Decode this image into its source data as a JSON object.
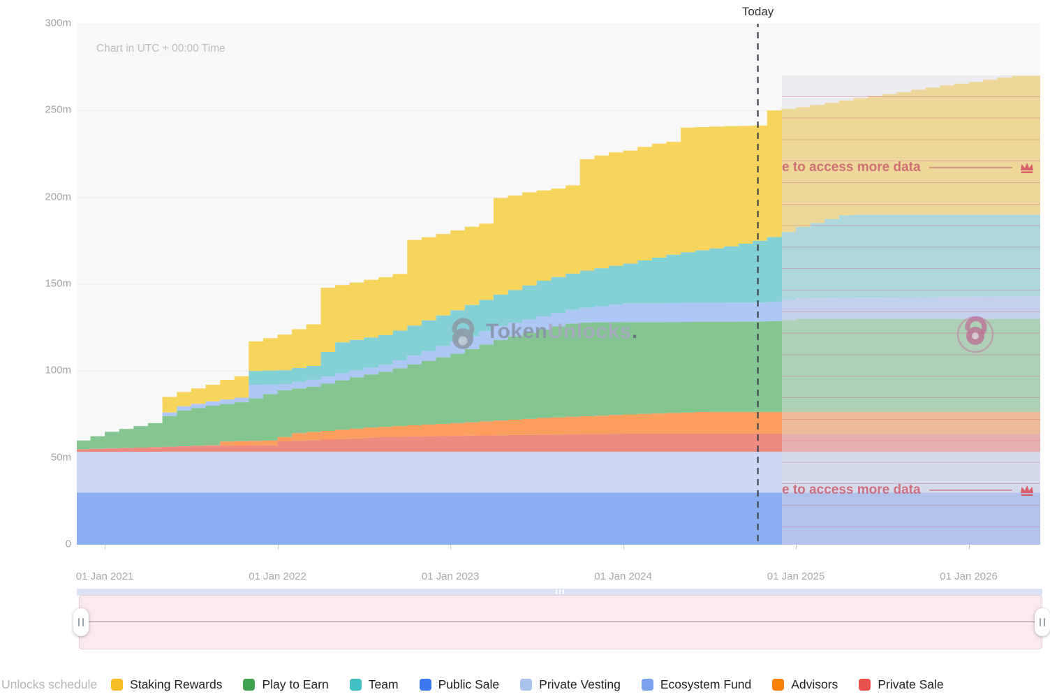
{
  "header": {
    "timezone_note": "Chart in UTC + 00:00 Time"
  },
  "watermark": {
    "brand_bold": "Token",
    "brand_light": "Unlocks",
    "brand_dot": "."
  },
  "overlay": {
    "teaser_text": "e to access more data",
    "start_year": 2024.925,
    "accent_color": "#cb5c6c"
  },
  "legend": {
    "title": "Unlocks schedule",
    "items": [
      {
        "label": "Staking Rewards",
        "color": "#f5be25"
      },
      {
        "label": "Play to Earn",
        "color": "#3fa24f"
      },
      {
        "label": "Team",
        "color": "#41bfc1"
      },
      {
        "label": "Public Sale",
        "color": "#3d78ee"
      },
      {
        "label": "Private Vesting",
        "color": "#a9c3ee"
      },
      {
        "label": "Ecosystem Fund",
        "color": "#7aa1f0"
      },
      {
        "label": "Advisors",
        "color": "#fb8106"
      },
      {
        "label": "Private Sale",
        "color": "#e8504c"
      }
    ]
  },
  "chart_data": {
    "type": "area",
    "stacked": true,
    "units": "millions of tokens",
    "values_are": "cumulative_top_anchors [year, cumulative_millions], stepped monthly",
    "x_axis": {
      "min_year": 2020.838,
      "max_year": 2026.414,
      "ticks": [
        {
          "label": "01 Jan 2021",
          "year": 2021
        },
        {
          "label": "01 Jan 2022",
          "year": 2022
        },
        {
          "label": "01 Jan 2023",
          "year": 2023
        },
        {
          "label": "01 Jan 2024",
          "year": 2024
        },
        {
          "label": "01 Jan 2025",
          "year": 2025
        },
        {
          "label": "01 Jan 2026",
          "year": 2026
        }
      ]
    },
    "y_axis": {
      "min": 0,
      "max": 300,
      "tick_step": 50,
      "tick_labels": [
        "0",
        "50m",
        "100m",
        "150m",
        "200m",
        "250m",
        "300m"
      ],
      "grid": true
    },
    "today": {
      "label": "Today",
      "year": 2024.78,
      "line_color": "#40454d"
    },
    "series": [
      {
        "name": "Public Sale",
        "color": "#8aaef0",
        "anchors": [
          [
            2020.84,
            30
          ],
          [
            2026.41,
            30
          ]
        ]
      },
      {
        "name": "Private Vesting",
        "color": "#cdd9f3",
        "anchors": [
          [
            2020.84,
            53.5
          ],
          [
            2026.41,
            53.5
          ]
        ]
      },
      {
        "name": "Private Sale",
        "color": "#ee8b81",
        "anchors": [
          [
            2020.84,
            55
          ],
          [
            2021.2,
            56
          ],
          [
            2021.5,
            57
          ],
          [
            2021.95,
            57.2
          ],
          [
            2022.0,
            59.5
          ],
          [
            2022.6,
            62
          ],
          [
            2023.2,
            63
          ],
          [
            2024.0,
            64
          ],
          [
            2026.41,
            64
          ]
        ]
      },
      {
        "name": "Advisors",
        "color": "#fb9e5e",
        "anchors": [
          [
            2020.84,
            55
          ],
          [
            2021.2,
            56
          ],
          [
            2021.5,
            57
          ],
          [
            2021.58,
            57.2
          ],
          [
            2021.67,
            59.5
          ],
          [
            2021.95,
            60
          ],
          [
            2022.05,
            64
          ],
          [
            2022.5,
            67.5
          ],
          [
            2023.0,
            70
          ],
          [
            2023.5,
            73
          ],
          [
            2024.0,
            75
          ],
          [
            2024.45,
            76.5
          ],
          [
            2026.41,
            76.5
          ]
        ]
      },
      {
        "name": "Play to Earn",
        "color": "#85c591",
        "anchors": [
          [
            2020.84,
            60
          ],
          [
            2021.0,
            65
          ],
          [
            2021.25,
            70
          ],
          [
            2021.33,
            74
          ],
          [
            2021.4,
            77
          ],
          [
            2021.58,
            80
          ],
          [
            2021.75,
            82
          ],
          [
            2022.0,
            89
          ],
          [
            2022.17,
            91
          ],
          [
            2022.3,
            94
          ],
          [
            2022.6,
            100
          ],
          [
            2023.0,
            110
          ],
          [
            2023.25,
            118
          ],
          [
            2023.5,
            124
          ],
          [
            2023.7,
            128
          ],
          [
            2024.8,
            128.5
          ],
          [
            2025.0,
            130
          ],
          [
            2026.41,
            130
          ]
        ]
      },
      {
        "name": "Ecosystem Fund",
        "color": "#aec7f5",
        "anchors": [
          [
            2020.84,
            60
          ],
          [
            2021.0,
            65
          ],
          [
            2021.25,
            70
          ],
          [
            2021.33,
            76
          ],
          [
            2021.4,
            79.5
          ],
          [
            2021.58,
            82.5
          ],
          [
            2021.75,
            84.7
          ],
          [
            2021.79,
            92
          ],
          [
            2022.0,
            92.5
          ],
          [
            2022.17,
            95
          ],
          [
            2022.3,
            98
          ],
          [
            2022.6,
            104
          ],
          [
            2023.0,
            117
          ],
          [
            2023.25,
            126
          ],
          [
            2023.5,
            131.5
          ],
          [
            2023.7,
            136
          ],
          [
            2024.0,
            139
          ],
          [
            2024.8,
            139.5
          ],
          [
            2025.0,
            142
          ],
          [
            2026.41,
            143
          ]
        ]
      },
      {
        "name": "Team",
        "color": "#84d1d5",
        "anchors": [
          [
            2020.84,
            60
          ],
          [
            2021.0,
            65
          ],
          [
            2021.25,
            70
          ],
          [
            2021.33,
            76
          ],
          [
            2021.4,
            79.5
          ],
          [
            2021.58,
            82.5
          ],
          [
            2021.75,
            84.7
          ],
          [
            2021.79,
            100
          ],
          [
            2022.0,
            100.5
          ],
          [
            2022.17,
            103
          ],
          [
            2022.3,
            116
          ],
          [
            2022.6,
            121
          ],
          [
            2023.0,
            135
          ],
          [
            2023.25,
            144
          ],
          [
            2023.5,
            152
          ],
          [
            2023.7,
            157
          ],
          [
            2024.0,
            162
          ],
          [
            2024.3,
            168
          ],
          [
            2024.6,
            172
          ],
          [
            2024.8,
            176
          ],
          [
            2025.0,
            183
          ],
          [
            2025.26,
            190
          ],
          [
            2026.41,
            190
          ]
        ]
      },
      {
        "name": "Staking Rewards",
        "color": "#f7d45b",
        "anchors": [
          [
            2020.84,
            60
          ],
          [
            2021.0,
            65
          ],
          [
            2021.25,
            70
          ],
          [
            2021.33,
            85
          ],
          [
            2021.42,
            88
          ],
          [
            2021.5,
            90
          ],
          [
            2021.58,
            92
          ],
          [
            2021.67,
            95
          ],
          [
            2021.75,
            97
          ],
          [
            2021.79,
            115
          ],
          [
            2021.83,
            117
          ],
          [
            2021.92,
            119
          ],
          [
            2022.0,
            121
          ],
          [
            2022.08,
            124
          ],
          [
            2022.17,
            127
          ],
          [
            2022.25,
            148
          ],
          [
            2022.42,
            151
          ],
          [
            2022.58,
            154
          ],
          [
            2022.67,
            156
          ],
          [
            2022.72,
            175
          ],
          [
            2022.83,
            177
          ],
          [
            2022.92,
            179
          ],
          [
            2023.0,
            181
          ],
          [
            2023.08,
            183
          ],
          [
            2023.17,
            185
          ],
          [
            2023.21,
            199
          ],
          [
            2023.33,
            201
          ],
          [
            2023.42,
            203
          ],
          [
            2023.58,
            205
          ],
          [
            2023.67,
            207
          ],
          [
            2023.75,
            222
          ],
          [
            2023.83,
            224
          ],
          [
            2023.92,
            226
          ],
          [
            2024.0,
            227
          ],
          [
            2024.08,
            229
          ],
          [
            2024.17,
            231
          ],
          [
            2024.25,
            232
          ],
          [
            2024.29,
            240
          ],
          [
            2024.42,
            240.5
          ],
          [
            2024.58,
            241
          ],
          [
            2024.78,
            241.5
          ],
          [
            2024.83,
            250
          ],
          [
            2025.0,
            252
          ],
          [
            2025.17,
            254.5
          ],
          [
            2025.33,
            257
          ],
          [
            2025.5,
            259.5
          ],
          [
            2025.67,
            262
          ],
          [
            2025.83,
            264.5
          ],
          [
            2026.0,
            266.5
          ],
          [
            2026.17,
            269
          ],
          [
            2026.25,
            270
          ],
          [
            2026.41,
            270
          ]
        ]
      }
    ]
  }
}
